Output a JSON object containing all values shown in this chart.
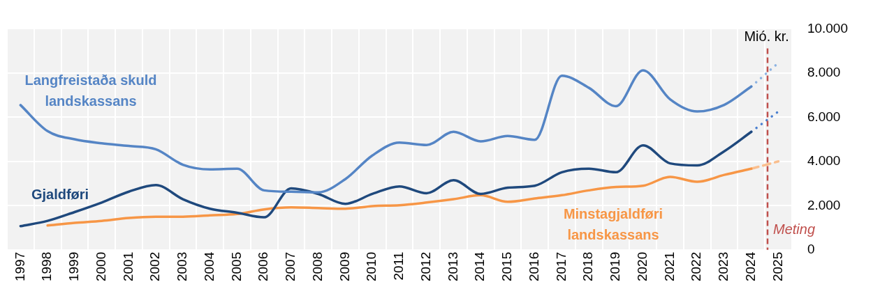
{
  "chart_data": {
    "type": "line",
    "ylabel": "Mió. kr.",
    "x": [
      1997,
      1998,
      1999,
      2000,
      2001,
      2002,
      2003,
      2004,
      2005,
      2006,
      2007,
      2008,
      2009,
      2010,
      2011,
      2012,
      2013,
      2014,
      2015,
      2016,
      2017,
      2018,
      2019,
      2020,
      2021,
      2022,
      2023,
      2024,
      2025
    ],
    "xlim": [
      1996.5,
      2025.5
    ],
    "xticks": [
      1997,
      1998,
      1999,
      2000,
      2001,
      2002,
      2003,
      2004,
      2005,
      2006,
      2007,
      2008,
      2009,
      2010,
      2011,
      2012,
      2013,
      2014,
      2015,
      2016,
      2017,
      2018,
      2019,
      2020,
      2021,
      2022,
      2023,
      2024,
      2025
    ],
    "ylim": [
      0,
      10000
    ],
    "yticks": [
      {
        "value": 0,
        "label": "0"
      },
      {
        "value": 2000,
        "label": "2.000"
      },
      {
        "value": 4000,
        "label": "4.000"
      },
      {
        "value": 6000,
        "label": "6.000"
      },
      {
        "value": 8000,
        "label": "8.000"
      },
      {
        "value": 10000,
        "label": "10.000"
      }
    ],
    "grid": true,
    "legend": false,
    "marker": "none",
    "line_style": "solid",
    "series": [
      {
        "name": "Langfreistaða skuld landskassans",
        "color": "#5585c5",
        "values": [
          6550,
          5370,
          5000,
          4820,
          4700,
          4550,
          3850,
          3640,
          3670,
          2690,
          2630,
          2600,
          3200,
          4270,
          4850,
          4740,
          5340,
          4910,
          5150,
          4980,
          7880,
          7330,
          6500,
          8120,
          6810,
          6260,
          6560,
          7390,
          null
        ]
      },
      {
        "name": "Gjaldføri",
        "color": "#1f497d",
        "values": [
          1070,
          1310,
          1710,
          2140,
          2630,
          2930,
          2290,
          1860,
          1680,
          1470,
          2780,
          2530,
          2080,
          2530,
          2870,
          2560,
          3150,
          2530,
          2810,
          2900,
          3510,
          3670,
          3510,
          4730,
          3910,
          3820,
          4460,
          5340,
          null
        ]
      },
      {
        "name": "Minstagjaldføri landskassans",
        "color": "#f79646",
        "values": [
          null,
          1100,
          1220,
          1310,
          1440,
          1500,
          1500,
          1560,
          1620,
          1830,
          1920,
          1890,
          1860,
          1980,
          2020,
          2140,
          2290,
          2470,
          2170,
          2320,
          2470,
          2690,
          2840,
          2900,
          3300,
          3080,
          3390,
          3670,
          null
        ]
      },
      {
        "color": "#8db3e2",
        "values": [
          null,
          null,
          null,
          null,
          null,
          null,
          null,
          null,
          null,
          null,
          null,
          null,
          null,
          null,
          null,
          null,
          null,
          null,
          null,
          null,
          null,
          null,
          null,
          null,
          null,
          null,
          null,
          7390,
          8460
        ],
        "line_style": "dotted"
      },
      {
        "color": "#4a7fd0",
        "values": [
          null,
          null,
          null,
          null,
          null,
          null,
          null,
          null,
          null,
          null,
          null,
          null,
          null,
          null,
          null,
          null,
          null,
          null,
          null,
          null,
          null,
          null,
          null,
          null,
          null,
          null,
          null,
          5340,
          6260
        ],
        "line_style": "dotted"
      },
      {
        "color": "#fabf8f",
        "values": [
          null,
          null,
          null,
          null,
          null,
          null,
          null,
          null,
          null,
          null,
          null,
          null,
          null,
          null,
          null,
          null,
          null,
          null,
          null,
          null,
          null,
          null,
          null,
          null,
          null,
          null,
          null,
          3670,
          4000
        ],
        "line_style": "dashed"
      }
    ],
    "ref_lines": [
      {
        "axis": "x",
        "value": 2024.6,
        "label": "Meting",
        "color": "#c0504d",
        "line_style": "dashed"
      }
    ]
  }
}
